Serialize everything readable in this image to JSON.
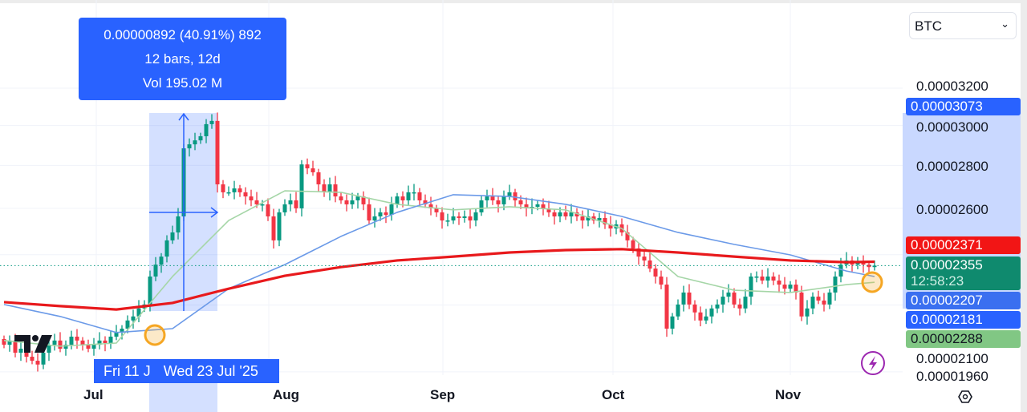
{
  "symbol_select": {
    "value": "BTC"
  },
  "measure_tooltip": {
    "line1": "0.00000892 (40.91%) 892",
    "line2": "12 bars, 12d",
    "line3": "Vol 195.02 M"
  },
  "time_bubble": {
    "start": "Fri 11 J",
    "end": "Wed 23 Jul '25"
  },
  "countdown": "12:58:23",
  "colors": {
    "up": "#089981",
    "down": "#f23645",
    "ma_red": "#e8191c",
    "ma_blue": "#6b9ae8",
    "ma_green": "#a5d6a7",
    "measure": "#2962ff",
    "highlight": "#f5a623"
  },
  "chart_data": {
    "type": "candlestick",
    "y_scale": "log",
    "ylim": [
      1.93e-05,
      3.3e-05
    ],
    "grid": true,
    "x_ticks": [
      "Jul",
      "Aug",
      "Sep",
      "Oct",
      "Nov"
    ],
    "y_ticks": [
      "0.00003200",
      "0.00003000",
      "0.00002800",
      "0.00002600",
      "0.00002100",
      "0.00001960"
    ],
    "closes": [
      2.054e-05,
      2.069e-05,
      2.026e-05,
      2.04e-05,
      2.012e-05,
      1.998e-05,
      1.985e-05,
      2.026e-05,
      2.054e-05,
      2.069e-05,
      2.04e-05,
      2.054e-05,
      2.083e-05,
      2.069e-05,
      2.054e-05,
      2.04e-05,
      2.054e-05,
      2.069e-05,
      2.06e-05,
      2.083e-05,
      2.098e-05,
      2.112e-05,
      2.142e-05,
      2.157e-05,
      2.187e-05,
      2.202e-05,
      2.311e-05,
      2.359e-05,
      2.392e-05,
      2.46e-05,
      2.494e-05,
      2.564e-05,
      2.884e-05,
      2.904e-05,
      2.924e-05,
      2.945e-05,
      3.007e-05,
      3.024e-05,
      2.71e-05,
      2.673e-05,
      2.673e-05,
      2.691e-05,
      2.673e-05,
      2.654e-05,
      2.636e-05,
      2.618e-05,
      2.618e-05,
      2.564e-05,
      2.46e-05,
      2.582e-05,
      2.618e-05,
      2.636e-05,
      2.6e-05,
      2.805e-05,
      2.786e-05,
      2.767e-05,
      2.71e-05,
      2.673e-05,
      2.71e-05,
      2.654e-05,
      2.636e-05,
      2.618e-05,
      2.636e-05,
      2.654e-05,
      2.618e-05,
      2.546e-05,
      2.564e-05,
      2.582e-05,
      2.571e-05,
      2.618e-05,
      2.654e-05,
      2.636e-05,
      2.673e-05,
      2.673e-05,
      2.636e-05,
      2.618e-05,
      2.6e-05,
      2.582e-05,
      2.546e-05,
      2.546e-05,
      2.564e-05,
      2.557e-05,
      2.564e-05,
      2.546e-05,
      2.582e-05,
      2.636e-05,
      2.654e-05,
      2.636e-05,
      2.618e-05,
      2.654e-05,
      2.673e-05,
      2.636e-05,
      2.618e-05,
      2.6e-05,
      2.607e-05,
      2.618e-05,
      2.6e-05,
      2.582e-05,
      2.564e-05,
      2.582e-05,
      2.564e-05,
      2.582e-05,
      2.564e-05,
      2.546e-05,
      2.564e-05,
      2.546e-05,
      2.557e-05,
      2.529e-05,
      2.511e-05,
      2.529e-05,
      2.494e-05,
      2.46e-05,
      2.426e-05,
      2.392e-05,
      2.376e-05,
      2.343e-05,
      2.311e-05,
      2.279e-05,
      2.112e-05,
      2.157e-05,
      2.202e-05,
      2.248e-05,
      2.202e-05,
      2.172e-05,
      2.142e-05,
      2.157e-05,
      2.187e-05,
      2.202e-05,
      2.232e-05,
      2.248e-05,
      2.202e-05,
      2.187e-05,
      2.232e-05,
      2.311e-05,
      2.311e-05,
      2.295e-05,
      2.311e-05,
      2.295e-05,
      2.279e-05,
      2.263e-05,
      2.279e-05,
      2.248e-05,
      2.157e-05,
      2.187e-05,
      2.232e-05,
      2.217e-05,
      2.202e-05,
      2.248e-05,
      2.311e-05,
      2.359e-05,
      2.376e-05,
      2.359e-05,
      2.366e-05,
      2.359e-05,
      2.349e-05,
      2.355e-05
    ],
    "ma_red": [
      2.211e-05,
      2.196e-05,
      2.183e-05,
      2.208e-05,
      2.263e-05,
      2.314e-05,
      2.349e-05,
      2.376e-05,
      2.392e-05,
      2.409e-05,
      2.419e-05,
      2.423e-05,
      2.409e-05,
      2.392e-05,
      2.376e-05,
      2.369e-05,
      2.371e-05
    ],
    "ma_blue": [
      2.202e-05,
      2.157e-05,
      2.098e-05,
      2.112e-05,
      2.263e-05,
      2.359e-05,
      2.477e-05,
      2.582e-05,
      2.662e-05,
      2.654e-05,
      2.618e-05,
      2.564e-05,
      2.494e-05,
      2.443e-05,
      2.399e-05,
      2.333e-05,
      2.311e-05
    ],
    "ma_green": [
      2.069e-05,
      2.049e-05,
      2.06e-05,
      2.311e-05,
      2.546e-05,
      2.68e-05,
      2.673e-05,
      2.618e-05,
      2.593e-05,
      2.607e-05,
      2.593e-05,
      2.511e-05,
      2.311e-05,
      2.257e-05,
      2.248e-05,
      2.279e-05,
      2.288e-05
    ],
    "last_price": "0.00002355",
    "price_labels": {
      "measure_high": "0.00003073",
      "ma_red": "0.00002371",
      "ma_blue_hidden": "0.00002207",
      "measure_low": "0.00002181",
      "ma_green": "0.00002288"
    }
  }
}
